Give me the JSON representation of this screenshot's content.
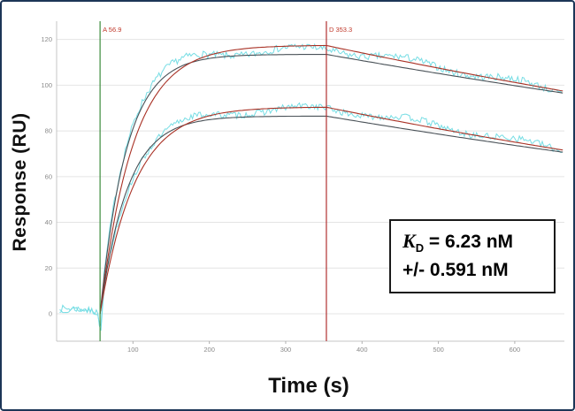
{
  "chart_data": {
    "type": "line",
    "title": "",
    "xlabel": "Time (s)",
    "ylabel": "Response (RU)",
    "xlim": [
      0,
      665
    ],
    "ylim": [
      -12,
      128
    ],
    "x_ticks": [
      100,
      200,
      300,
      400,
      500,
      600
    ],
    "y_ticks": [
      0,
      20,
      40,
      60,
      80,
      100,
      120
    ],
    "grid": "horizontal",
    "legend": "none",
    "events": [
      {
        "id": "association",
        "label": "A 56.9",
        "time": 56.9,
        "line_color": "#3c8c3c",
        "label_color": "#c0392b"
      },
      {
        "id": "dissociation",
        "label": "D 353.3",
        "time": 353.3,
        "line_color": "#b03030",
        "label_color": "#c0392b"
      }
    ],
    "series": [
      {
        "name": "high-concentration-trace",
        "raw_color": "#76dde4",
        "raw": {
          "req": 116,
          "k_obs": 0.03,
          "k_diss": 0.00055,
          "noise": 2.4,
          "seed": 7
        },
        "fit_dark": {
          "req": 113.5,
          "k_obs": 0.029,
          "k_diss": 0.00052,
          "color": "#4a5258"
        },
        "fit_red": {
          "req": 117.5,
          "k_obs": 0.023,
          "k_diss": 0.0006,
          "color": "#a93226"
        }
      },
      {
        "name": "low-concentration-trace",
        "raw_color": "#76dde4",
        "raw": {
          "req": 90,
          "k_obs": 0.026,
          "k_diss": 0.0007,
          "noise": 2.2,
          "seed": 13
        },
        "fit_dark": {
          "req": 86.5,
          "k_obs": 0.028,
          "k_diss": 0.00065,
          "color": "#4a5258"
        },
        "fit_red": {
          "req": 90.5,
          "k_obs": 0.022,
          "k_diss": 0.00075,
          "color": "#a93226"
        }
      }
    ],
    "injection_dip": {
      "amplitude": 10,
      "width": 2.2
    },
    "annotation": {
      "symbol": "K",
      "subscript": "D",
      "value": " = 6.23 nM",
      "error": "+/- 0.591 nM"
    }
  },
  "frame": {
    "border_color": "#1c3557",
    "background": "#ffffff"
  }
}
